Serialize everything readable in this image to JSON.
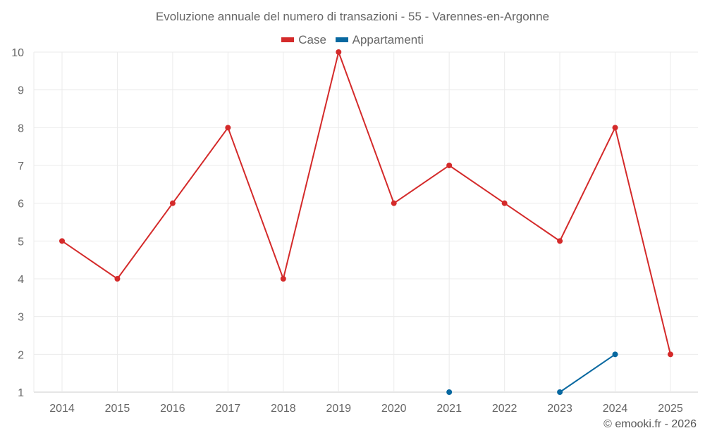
{
  "chart_data": {
    "type": "line",
    "title": "Evoluzione annuale del numero di transazioni - 55 - Varennes-en-Argonne",
    "categories": [
      "2014",
      "2015",
      "2016",
      "2017",
      "2018",
      "2019",
      "2020",
      "2021",
      "2022",
      "2023",
      "2024",
      "2025"
    ],
    "series": [
      {
        "name": "Case",
        "color": "#d42a2a",
        "values": [
          5,
          4,
          6,
          8,
          4,
          10,
          6,
          7,
          6,
          5,
          8,
          2
        ]
      },
      {
        "name": "Appartamenti",
        "color": "#0868a0",
        "values": [
          null,
          null,
          null,
          null,
          null,
          null,
          null,
          1,
          null,
          1,
          2,
          null
        ]
      }
    ],
    "ylim": [
      1,
      10
    ],
    "yticks": [
      "1",
      "2",
      "3",
      "4",
      "5",
      "6",
      "7",
      "8",
      "9",
      "10"
    ],
    "grid": true,
    "legend": "top-center",
    "xlabel": "",
    "ylabel": ""
  },
  "credit": "© emooki.fr - 2026"
}
